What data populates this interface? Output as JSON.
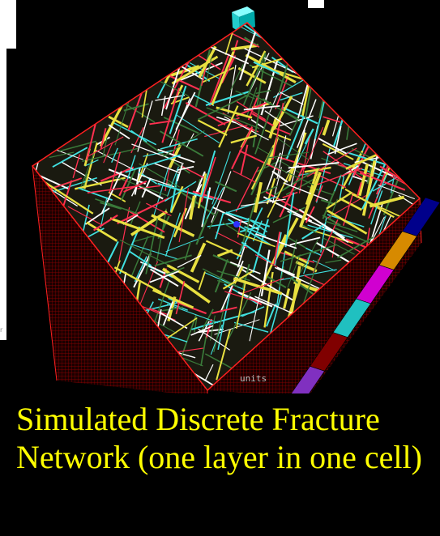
{
  "caption": {
    "text": "Simulated Discrete Fracture Network (one layer in one cell)",
    "color": "#ffff00",
    "background": "#000000"
  },
  "scene": {
    "background": "#000000",
    "box_outline_color": "#ff2020",
    "units_label": "units",
    "fracture_colors": [
      "#ffffff",
      "#40e0e0",
      "#e8e040",
      "#ff3050",
      "#3a7a3a"
    ],
    "color_scale": [
      "#00008b",
      "#d78a00",
      "#d000d0",
      "#20c0c0",
      "#800000",
      "#8030c0"
    ]
  }
}
